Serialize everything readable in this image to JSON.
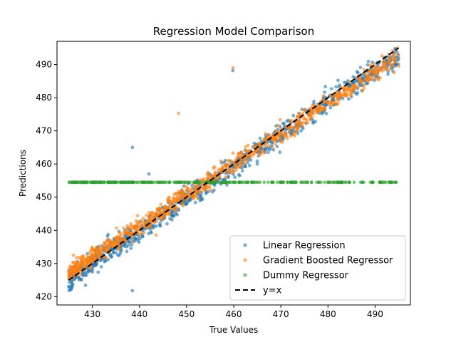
{
  "chart_data": {
    "type": "scatter",
    "title": "Regression Model Comparison",
    "xlabel": "True Values",
    "ylabel": "Predictions",
    "xlim": [
      422.5,
      497.5
    ],
    "ylim": [
      417.5,
      497.0
    ],
    "xticks": [
      430,
      440,
      450,
      460,
      470,
      480,
      490
    ],
    "yticks": [
      420,
      430,
      440,
      450,
      460,
      470,
      480,
      490
    ],
    "grid": false,
    "legend_position": "lower-right",
    "series": [
      {
        "name": "Linear Regression",
        "color": "#1f77b4",
        "marker": "circle",
        "x_range": [
          425,
          495
        ],
        "fit": {
          "slope": 0.97,
          "intercept": 13.0
        },
        "noise_sd": 3.5,
        "count": 900,
        "outliers": [
          [
            438.5,
            465.0
          ],
          [
            459.8,
            488.2
          ],
          [
            469.0,
            471.5
          ],
          [
            442.0,
            457.0
          ],
          [
            438.5,
            421.8
          ],
          [
            493.8,
            488.0
          ]
        ]
      },
      {
        "name": "Gradient Boosted Regressor",
        "color": "#ff7f0e",
        "marker": "circle",
        "x_range": [
          425,
          495
        ],
        "fit": {
          "slope": 0.93,
          "intercept": 32.0
        },
        "noise_sd": 2.8,
        "count": 900,
        "outliers": [
          [
            459.9,
            489.0
          ],
          [
            448.3,
            475.3
          ],
          [
            443.5,
            438.6
          ],
          [
            495.0,
            489.5
          ],
          [
            426.0,
            432.5
          ]
        ]
      },
      {
        "name": "Dummy Regressor",
        "color": "#2ca02c",
        "marker": "circle",
        "x_range": [
          425,
          495
        ],
        "constant_value": 454.5,
        "count": 320
      }
    ],
    "reference_line": {
      "name": "y=x",
      "style": "dashed",
      "color": "#000000",
      "x": [
        425,
        495
      ],
      "y": [
        425,
        495
      ]
    }
  }
}
